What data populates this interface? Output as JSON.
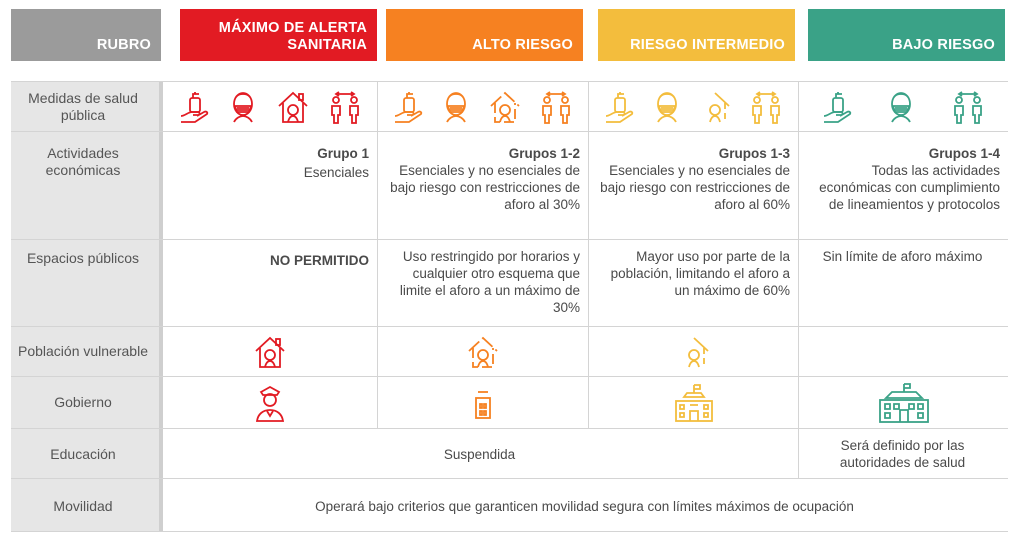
{
  "header": {
    "rubro": "RUBRO",
    "maximo": "MÁXIMO DE ALERTA SANITARIA",
    "alto": "ALTO RIESGO",
    "intermedio": "RIESGO INTERMEDIO",
    "bajo": "BAJO RIESGO"
  },
  "colors": {
    "maximo": "#e21b23",
    "alto": "#f68121",
    "intermedio": "#f3bd3d",
    "bajo": "#3aa287",
    "rubro": "#9b9b9b"
  },
  "rows": {
    "medidas": {
      "label": "Medidas de salud pública"
    },
    "actividades": {
      "label": "Actividades económicas",
      "maximo": {
        "title": "Grupo 1",
        "text": "Esenciales"
      },
      "alto": {
        "title": "Grupos 1-2",
        "text": "Esenciales y no esenciales de bajo riesgo con restricciones de aforo al 30%"
      },
      "intermedio": {
        "title": "Grupos 1-3",
        "text": "Esenciales y no esenciales de bajo riesgo con restricciones de aforo al 60%"
      },
      "bajo": {
        "title": "Grupos 1-4",
        "text": "Todas las actividades económicas con cumplimiento de lineamientos y protocolos"
      }
    },
    "espacios": {
      "label": "Espacios públicos",
      "maximo": "NO PERMITIDO",
      "alto": "Uso restringido por horarios y cualquier otro esquema que limite el aforo a un máximo de 30%",
      "intermedio": "Mayor uso por parte de la población, limitando el aforo a un máximo de 60%",
      "bajo": "Sin límite de aforo máximo"
    },
    "poblacion": {
      "label": "Población vulnerable"
    },
    "gobierno": {
      "label": "Gobierno"
    },
    "educacion": {
      "label": "Educación",
      "suspendida": "Suspendida",
      "bajo": "Será definido por las autoridades de salud"
    },
    "movilidad": {
      "label": "Movilidad",
      "text": "Operará bajo criterios que garanticen movilidad segura con límites máximos de ocupación"
    }
  },
  "icons": {
    "handwash": "hand-sanitizer-icon",
    "mask": "face-mask-icon",
    "stayhome": "stay-home-icon",
    "distance": "social-distance-icon",
    "officer": "police-officer-icon",
    "government": "government-building-icon"
  }
}
